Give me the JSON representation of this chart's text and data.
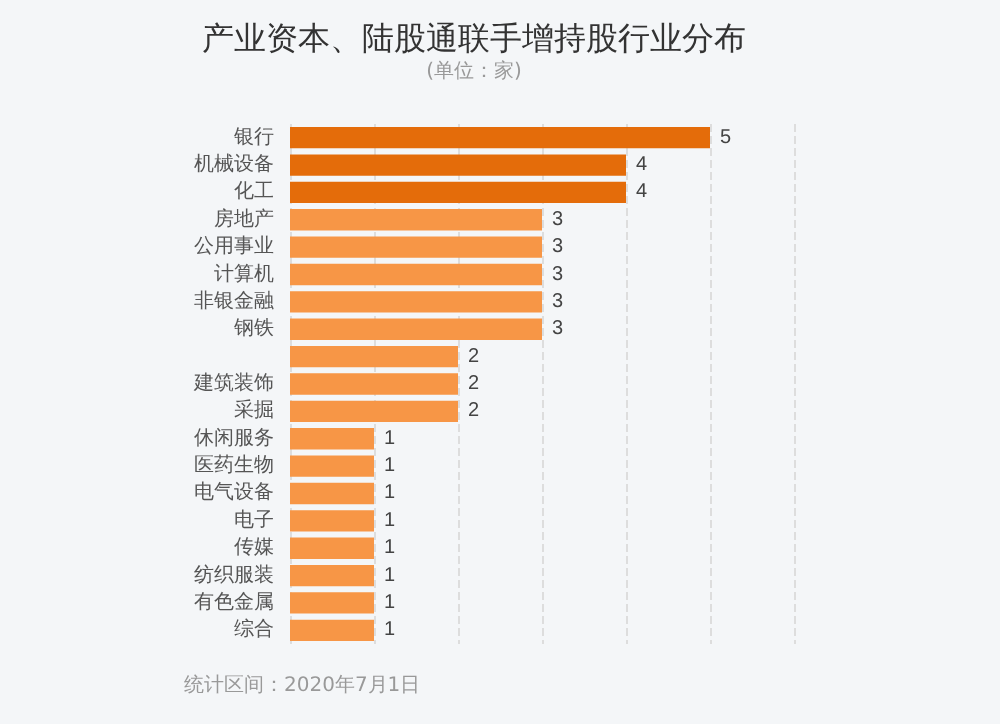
{
  "chart_data": {
    "type": "bar",
    "orientation": "horizontal",
    "title": "产业资本、陆股通联手增持股行业分布",
    "subtitle": "(单位：家)",
    "categories": [
      "银行",
      "机械设备",
      "化工",
      "房地产",
      "公用事业",
      "计算机",
      "非银金融",
      "钢铁",
      null,
      "建筑装饰",
      "采掘",
      "休闲服务",
      "医药生物",
      "电气设备",
      "电子",
      "传媒",
      "纺织服装",
      "有色金属",
      "综合"
    ],
    "values": [
      5,
      4,
      4,
      3,
      3,
      3,
      3,
      3,
      2,
      2,
      2,
      1,
      1,
      1,
      1,
      1,
      1,
      1,
      1
    ],
    "colors": [
      "#e46c0a",
      "#e46c0a",
      "#e46c0a",
      "#f79646",
      "#f79646",
      "#f79646",
      "#f79646",
      "#f79646",
      "#f79646",
      "#f79646",
      "#f79646",
      "#f79646",
      "#f79646",
      "#f79646",
      "#f79646",
      "#f79646",
      "#f79646",
      "#f79646",
      "#f79646"
    ],
    "xlim": [
      0,
      6
    ],
    "xticks": [
      {
        "value": 0,
        "label": null
      },
      {
        "value": 1,
        "label": null
      },
      {
        "value": 2,
        "label": null
      },
      {
        "value": 3,
        "label": null
      },
      {
        "value": 4,
        "label": null
      },
      {
        "value": 5,
        "label": null
      },
      {
        "value": 6,
        "label": null
      }
    ],
    "grid": "x",
    "tick_labels": "y",
    "data_labels": true,
    "annotations": [
      "统计区间：2020年7月1日"
    ]
  }
}
